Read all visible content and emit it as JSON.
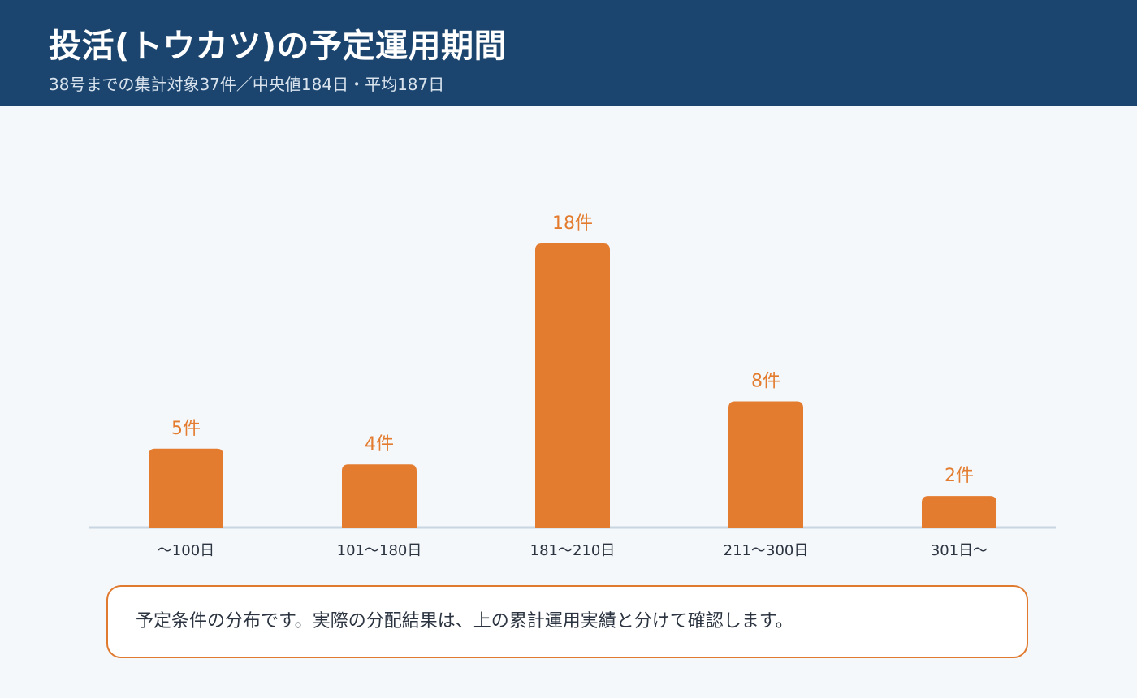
{
  "header": {
    "title": "投活(トウカツ)の予定運用期間",
    "subtitle": "38号までの集計対象37件／中央値184日・平均187日"
  },
  "colors": {
    "header_bg": "#1b456f",
    "bar": "#e37c2f",
    "bar_label": "#e37c2f",
    "axis": "#c9d6e2",
    "tick_label": "#2b3440"
  },
  "chart_data": {
    "type": "bar",
    "categories": [
      "〜100日",
      "101〜180日",
      "181〜210日",
      "211〜300日",
      "301日〜"
    ],
    "values": [
      5,
      4,
      18,
      8,
      2
    ],
    "data_labels": [
      "5件",
      "4件",
      "18件",
      "8件",
      "2件"
    ],
    "ylim": [
      0,
      18
    ],
    "grid": false,
    "legend": "none"
  },
  "note": {
    "text": "予定条件の分布です。実際の分配結果は、上の累計運用実績と分けて確認します。"
  }
}
